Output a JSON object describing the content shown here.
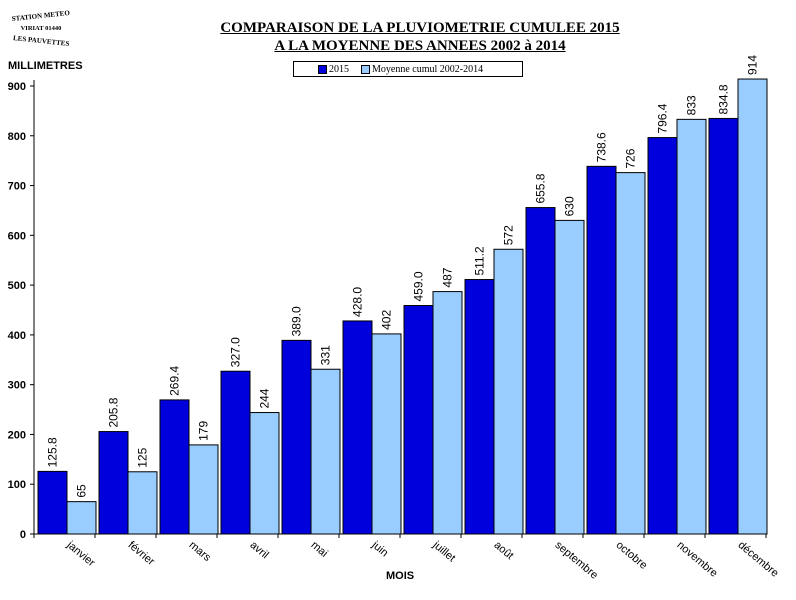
{
  "logo": {
    "line1": "STATION METEO",
    "line2": "VIRIAT 01440",
    "line3": "LES PAUVETTES"
  },
  "title_line1": "COMPARAISON DE LA PLUVIOMETRIE CUMULEE 2015",
  "title_line2": "A LA MOYENNE DES ANNEES 2002 à 2014",
  "colors": {
    "series_2015": "#0000DD",
    "series_moyenne": "#99CCFF"
  },
  "chart_data": {
    "type": "bar",
    "ylabel": "MILLIMETRES",
    "xlabel": "MOIS",
    "ylim": [
      0,
      900
    ],
    "yticks": [
      "0",
      "100",
      "200",
      "300",
      "400",
      "500",
      "600",
      "700",
      "800",
      "900"
    ],
    "grid": false,
    "legend_position": "top-center",
    "categories": [
      "janvier",
      "février",
      "mars",
      "avril",
      "mai",
      "juin",
      "juillet",
      "août",
      "septembre",
      "octobre",
      "novembre",
      "décembre"
    ],
    "series": [
      {
        "name": "2015",
        "values": [
          125.8,
          205.8,
          269.4,
          327.0,
          389.0,
          428.0,
          459.0,
          511.2,
          655.8,
          738.6,
          796.4,
          834.8
        ],
        "labels": [
          "125.8",
          "205.8",
          "269.4",
          "327.0",
          "389.0",
          "428.0",
          "459.0",
          "511.2",
          "655.8",
          "738.6",
          "796.4",
          "834.8"
        ]
      },
      {
        "name": "Moyenne cumul 2002-2014",
        "values": [
          65,
          125,
          179,
          244,
          331,
          402,
          487,
          572,
          630,
          726,
          833,
          914
        ],
        "labels": [
          "65",
          "125",
          "179",
          "244",
          "331",
          "402",
          "487",
          "572",
          "630",
          "726",
          "833",
          "914"
        ]
      }
    ]
  }
}
